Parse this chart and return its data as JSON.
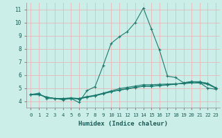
{
  "xlabel": "Humidex (Indice chaleur)",
  "background_color": "#cceee8",
  "grid_color": "#e8b8b8",
  "line_color": "#1a7a6e",
  "xlim": [
    -0.5,
    23.5
  ],
  "ylim": [
    3.5,
    11.5
  ],
  "xticks": [
    0,
    1,
    2,
    3,
    4,
    5,
    6,
    7,
    8,
    9,
    10,
    11,
    12,
    13,
    14,
    15,
    16,
    17,
    18,
    19,
    20,
    21,
    22,
    23
  ],
  "yticks": [
    4,
    5,
    6,
    7,
    8,
    9,
    10,
    11
  ],
  "series": [
    {
      "x": [
        0,
        1,
        2,
        3,
        4,
        5,
        6,
        7,
        8,
        9,
        10,
        11,
        12,
        13,
        14,
        15,
        16,
        17,
        18,
        19,
        20,
        21,
        22,
        23
      ],
      "y": [
        4.5,
        4.6,
        4.2,
        4.2,
        4.1,
        4.2,
        3.9,
        4.8,
        5.1,
        6.7,
        8.4,
        8.9,
        9.3,
        10.0,
        11.1,
        9.5,
        7.9,
        5.9,
        5.8,
        5.4,
        5.5,
        5.4,
        5.0,
        4.9
      ]
    },
    {
      "x": [
        0,
        1,
        2,
        3,
        4,
        5,
        6,
        7,
        8,
        9,
        10,
        11,
        12,
        13,
        14,
        15,
        16,
        17,
        18,
        19,
        20,
        21,
        22,
        23
      ],
      "y": [
        4.5,
        4.5,
        4.3,
        4.2,
        4.15,
        4.2,
        4.15,
        4.3,
        4.4,
        4.55,
        4.7,
        4.85,
        4.95,
        5.05,
        5.15,
        5.15,
        5.2,
        5.25,
        5.3,
        5.35,
        5.45,
        5.45,
        5.35,
        5.0
      ]
    },
    {
      "x": [
        0,
        1,
        2,
        3,
        4,
        5,
        6,
        7,
        8,
        9,
        10,
        11,
        12,
        13,
        14,
        15,
        16,
        17,
        18,
        19,
        20,
        21,
        22,
        23
      ],
      "y": [
        4.5,
        4.5,
        4.3,
        4.2,
        4.2,
        4.25,
        4.2,
        4.35,
        4.45,
        4.6,
        4.72,
        4.83,
        4.93,
        5.03,
        5.13,
        5.13,
        5.18,
        5.23,
        5.28,
        5.38,
        5.48,
        5.48,
        5.35,
        5.02
      ]
    },
    {
      "x": [
        0,
        1,
        2,
        3,
        4,
        5,
        6,
        7,
        8,
        9,
        10,
        11,
        12,
        13,
        14,
        15,
        16,
        17,
        18,
        19,
        20,
        21,
        22,
        23
      ],
      "y": [
        4.5,
        4.5,
        4.3,
        4.2,
        4.2,
        4.2,
        4.2,
        4.3,
        4.4,
        4.6,
        4.78,
        4.95,
        5.05,
        5.15,
        5.25,
        5.25,
        5.28,
        5.3,
        5.32,
        5.33,
        5.38,
        5.38,
        5.28,
        4.98
      ]
    }
  ]
}
